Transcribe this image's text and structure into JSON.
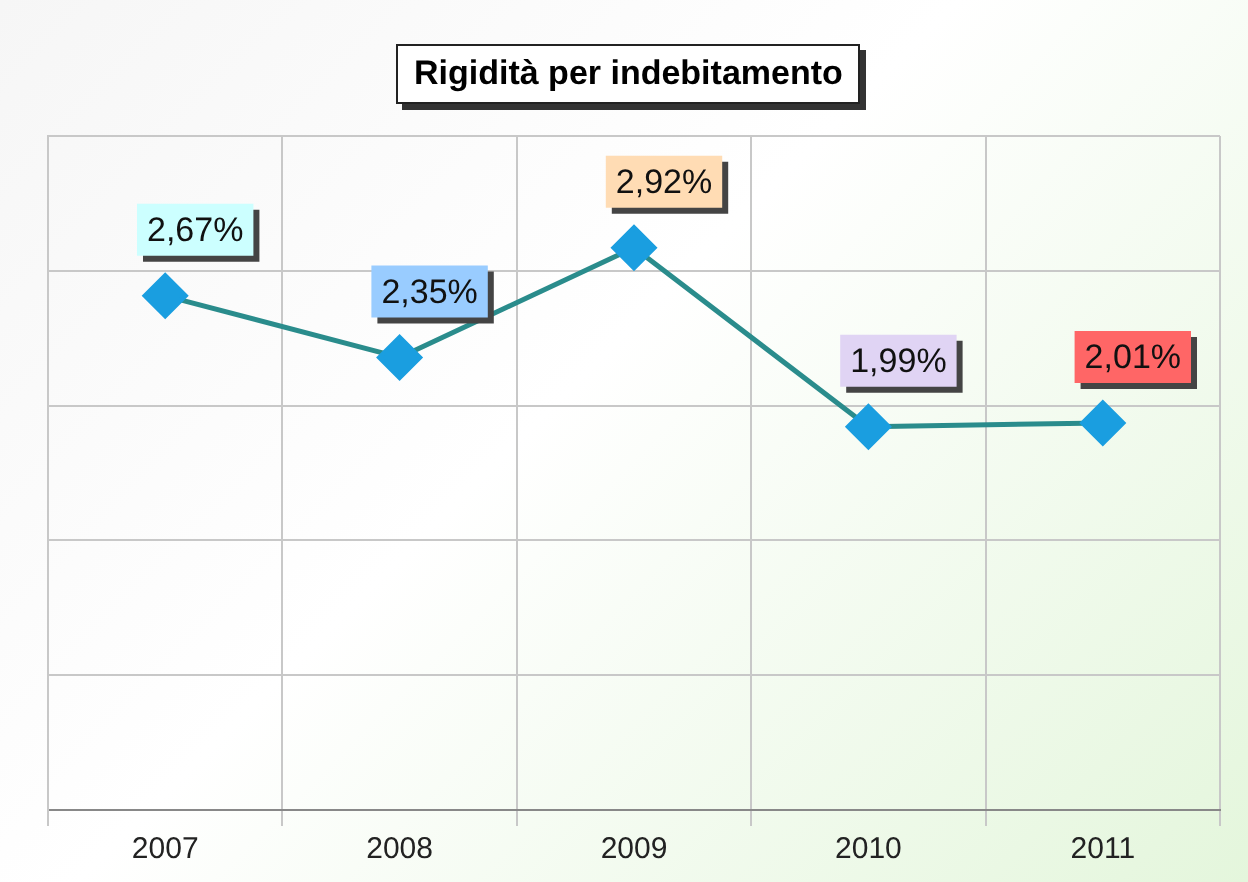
{
  "chart_data": {
    "type": "line",
    "title": "Rigidità per indebitamento",
    "categories": [
      "2007",
      "2008",
      "2009",
      "2010",
      "2011"
    ],
    "series": [
      {
        "color": "#2a8c8c",
        "values": [
          2.67,
          2.35,
          2.92,
          1.99,
          2.01
        ],
        "value_labels": [
          "2,67%",
          "2,35%",
          "2,92%",
          "1,99%",
          "2,01%"
        ]
      }
    ],
    "ylim": [
      0,
      3.5
    ],
    "yticks": [
      {
        "value": 0,
        "label": null
      },
      {
        "value": 0.7,
        "label": null
      },
      {
        "value": 1.4,
        "label": null
      },
      {
        "value": 2.1,
        "label": null
      },
      {
        "value": 2.8,
        "label": null
      },
      {
        "value": 3.5,
        "label": null
      }
    ],
    "tick_labels": "x",
    "grid": true,
    "marker": "diamond",
    "line_style": "solid",
    "legend": false
  }
}
